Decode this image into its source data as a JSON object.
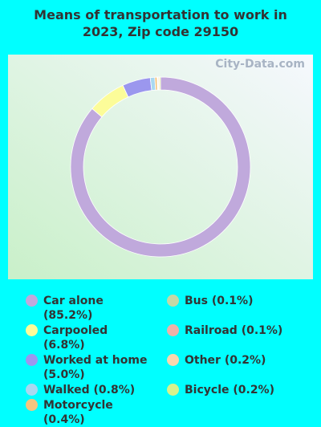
{
  "chart_data": {
    "type": "donut",
    "title": "Means of transportation to work in 2023, Zip code 29150",
    "watermark": "City-Data.com",
    "categories": [
      "Car alone (85.2%)",
      "Carpooled (6.8%)",
      "Worked at home (5.0%)",
      "Walked (0.8%)",
      "Motorcycle (0.4%)",
      "Bus (0.1%)",
      "Railroad (0.1%)",
      "Other (0.2%)",
      "Bicycle (0.2%)"
    ],
    "values": [
      85.2,
      6.8,
      5.0,
      0.8,
      0.4,
      0.1,
      0.1,
      0.2,
      0.2
    ],
    "colors": [
      "#c0a9dc",
      "#fcfc99",
      "#9b97ee",
      "#a9d8f0",
      "#f6c57e",
      "#c4d8a6",
      "#f0b1a8",
      "#fbd7ae",
      "#d7f28c"
    ]
  }
}
